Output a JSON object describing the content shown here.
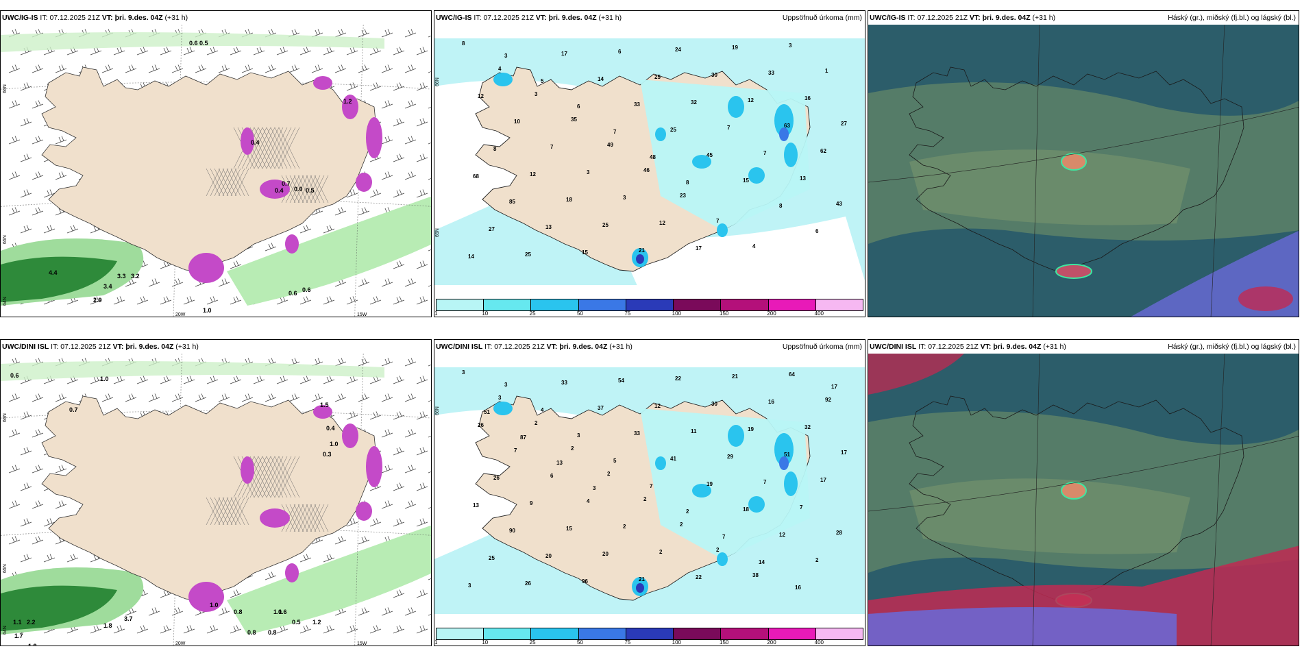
{
  "panels": [
    {
      "id": "top-left",
      "model": "UWC/IG-IS",
      "it_label": "IT:",
      "it_time": "07.12.2025 21Z",
      "vt_label": "VT:",
      "vt_time": "þri. 9.des. 04Z",
      "lead": "(+31 h)",
      "right_title": "",
      "numbers": [
        "0.6",
        "0.5",
        "4.4",
        "3.4",
        "3.3",
        "3.2",
        "2.9",
        "1.0",
        "0.6",
        "0.6",
        "0.4",
        "0.7",
        "0.4",
        "0.0",
        "0.5",
        "1.2"
      ],
      "axis": [
        "20W",
        "15W",
        "66N",
        "65N",
        "64N"
      ]
    },
    {
      "id": "top-mid",
      "model": "UWC/IG-IS",
      "it_label": "IT:",
      "it_time": "07.12.2025 21Z",
      "vt_label": "VT:",
      "vt_time": "þri. 9.des. 04Z",
      "lead": "(+31 h)",
      "right_title": "Uppsöfnuð úrkoma (mm)",
      "numbers": [
        "8",
        "4",
        "3",
        "35",
        "49",
        "46",
        "23",
        "7",
        "4",
        "3",
        "1",
        "12",
        "10",
        "7",
        "3",
        "3",
        "12",
        "17",
        "19",
        "33",
        "16",
        "27",
        "8",
        "12",
        "18",
        "25",
        "21",
        "24",
        "30",
        "12",
        "63",
        "62",
        "68",
        "85",
        "13",
        "15",
        "6",
        "25",
        "32",
        "7",
        "7",
        "13",
        "43",
        "27",
        "25",
        "17",
        "14",
        "33",
        "25",
        "45",
        "15",
        "8",
        "6",
        "14",
        "3",
        "5",
        "6",
        "7",
        "48",
        "8"
      ],
      "axis": [
        "66N",
        "65N"
      ]
    },
    {
      "id": "top-right",
      "model": "UWC/IG-IS",
      "it_label": "IT:",
      "it_time": "07.12.2025 21Z",
      "vt_label": "VT:",
      "vt_time": "þri. 9.des. 04Z",
      "lead": "(+31 h)",
      "right_title": "Háský (gr.), miðský (fj.bl.) og lágský (bl.)",
      "numbers": [],
      "axis": []
    },
    {
      "id": "bottom-left",
      "model": "UWC/DINI ISL",
      "it_label": "IT:",
      "it_time": "07.12.2025 21Z",
      "vt_label": "VT:",
      "vt_time": "þri. 9.des. 04Z",
      "lead": "(+31 h)",
      "right_title": "",
      "numbers": [
        "0.6",
        "1.0",
        "0.7",
        "1.5",
        "0.4",
        "1.0",
        "0.3",
        "1.1",
        "2.2",
        "1.7",
        "1.8",
        "3.7",
        "1.8",
        "0.5",
        "1.2",
        "0.8",
        "0.8",
        "1.1",
        "0.6",
        "0.8",
        "1.0"
      ],
      "axis": [
        "20W",
        "15W",
        "66N",
        "65N",
        "64N"
      ]
    },
    {
      "id": "bottom-mid",
      "model": "UWC/DINI ISL",
      "it_label": "IT:",
      "it_time": "07.12.2025 21Z",
      "vt_label": "VT:",
      "vt_time": "þri. 9.des. 04Z",
      "lead": "(+31 h)",
      "right_title": "Uppsöfnuð úrkoma (mm)",
      "numbers": [
        "3",
        "3",
        "2",
        "2",
        "2",
        "2",
        "2",
        "2",
        "38",
        "64",
        "92",
        "26",
        "7",
        "6",
        "4",
        "2",
        "2",
        "22",
        "21",
        "16",
        "32",
        "17",
        "26",
        "9",
        "15",
        "20",
        "21",
        "22",
        "30",
        "19",
        "51",
        "17",
        "13",
        "90",
        "20",
        "96",
        "54",
        "12",
        "11",
        "29",
        "7",
        "7",
        "28",
        "25",
        "26",
        "33",
        "37",
        "33",
        "41",
        "19",
        "18",
        "12",
        "2",
        "3",
        "3",
        "4",
        "3",
        "5",
        "7",
        "2",
        "7",
        "14",
        "16",
        "17",
        "51",
        "87",
        "13",
        "3"
      ],
      "axis": [
        "66N"
      ]
    },
    {
      "id": "bottom-right",
      "model": "UWC/DINI ISL",
      "it_label": "IT:",
      "it_time": "07.12.2025 21Z",
      "vt_label": "VT:",
      "vt_time": "þri. 9.des. 04Z",
      "lead": "(+31 h)",
      "right_title": "Háský (gr.), miðský (fj.bl.) og lágský (bl.)",
      "numbers": [],
      "axis": []
    }
  ],
  "colorbar": {
    "ticks": [
      "1",
      "10",
      "25",
      "50",
      "75",
      "100",
      "150",
      "200",
      "400"
    ],
    "colors": [
      "#b8f5f5",
      "#66e8ef",
      "#2ac4ee",
      "#3a78e6",
      "#2a3ab8",
      "#7a0a5a",
      "#b4107a",
      "#e81ab8",
      "#f6b8f2"
    ]
  },
  "colors": {
    "land": "#f0e0cc",
    "sea_precip_light": "#bff3f6",
    "snow_purple": "#c44ac8",
    "rain_green": "#2e8a3a",
    "cloud_dark": "#2c5d6a",
    "cloud_mid": "#5a7f68",
    "cloud_high_green": "#3ee6a0",
    "cloud_low_blue": "#6a6ad8",
    "cloud_red": "#c02a52"
  }
}
